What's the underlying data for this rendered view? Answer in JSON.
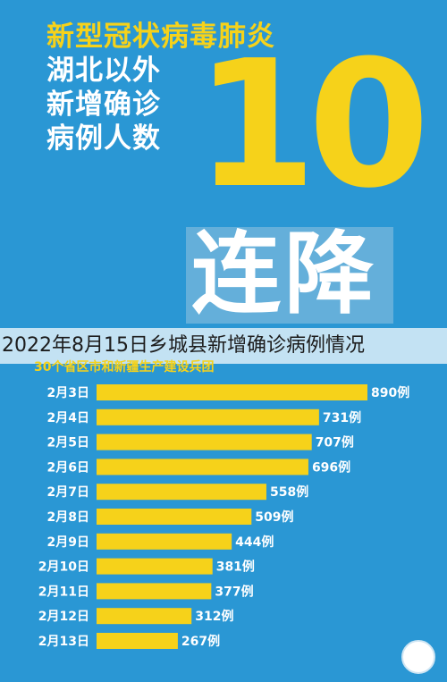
{
  "headline": {
    "line1": "新型冠状病毒肺炎",
    "line2": "湖北以外",
    "line3": "新增确诊",
    "line4": "病例人数"
  },
  "big_number": "10",
  "streak_label": "连降",
  "caption": "2022年8月15日乡城县新增确诊病例情况",
  "subhead": "30个省区市和新疆生产建设兵团",
  "colors": {
    "background": "#2a97d4",
    "accent_yellow": "#f6d21a",
    "bar": "#f6d21a",
    "text_white": "#ffffff"
  },
  "chart_data": {
    "type": "bar",
    "orientation": "horizontal",
    "categories": [
      "2月3日",
      "2月4日",
      "2月5日",
      "2月6日",
      "2月7日",
      "2月8日",
      "2月9日",
      "2月10日",
      "2月11日",
      "2月12日",
      "2月13日"
    ],
    "values": [
      890,
      731,
      707,
      696,
      558,
      509,
      444,
      381,
      377,
      312,
      267
    ],
    "value_labels": [
      "890例",
      "731例",
      "707例",
      "696例",
      "558例",
      "509例",
      "444例",
      "381例",
      "377例",
      "312例",
      "267例"
    ],
    "title": "",
    "xlabel": "",
    "ylabel": "",
    "grid": false,
    "legend": "none"
  }
}
